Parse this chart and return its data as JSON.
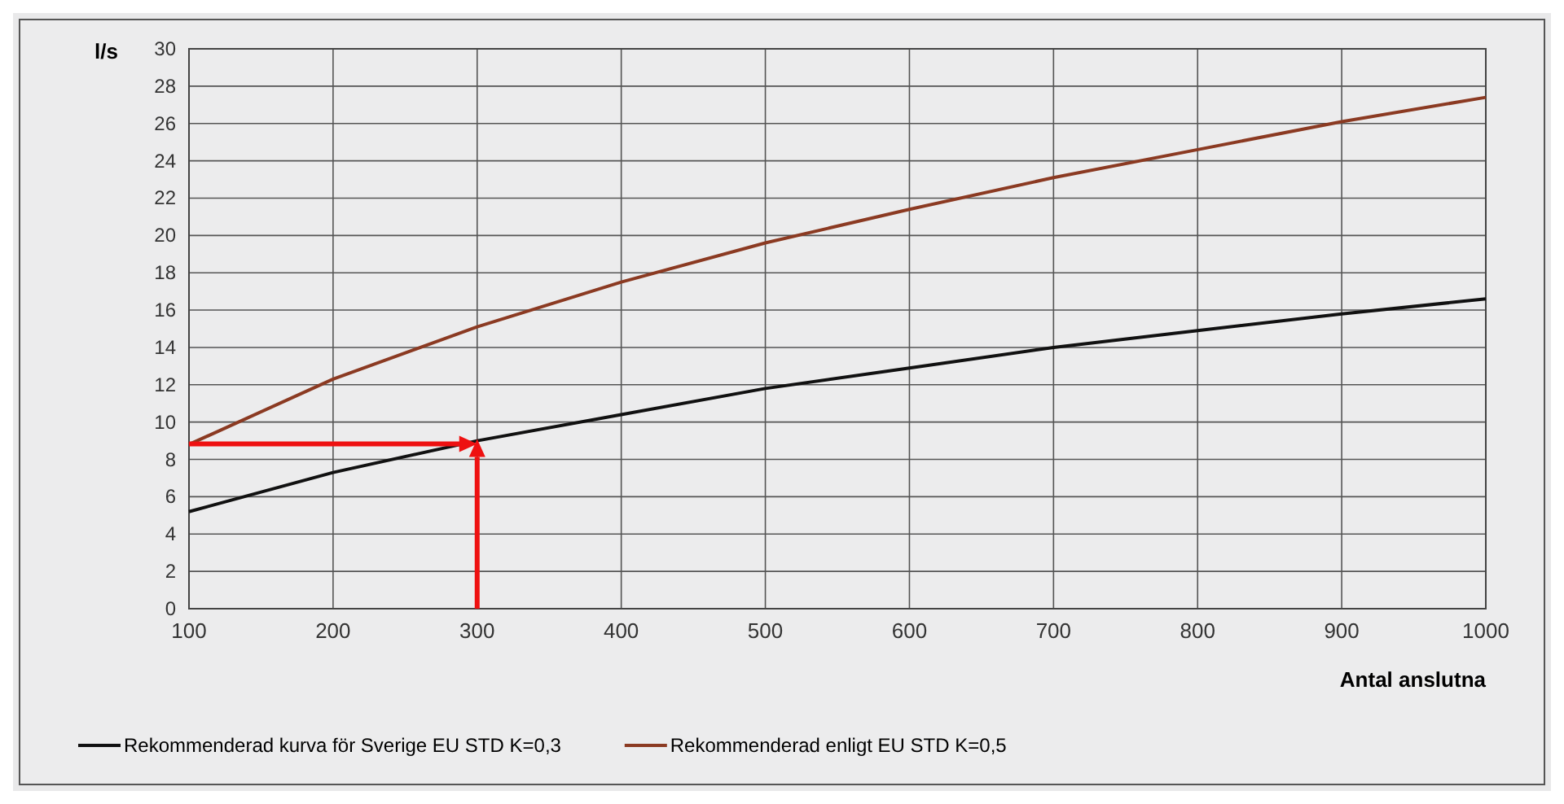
{
  "chart_data": {
    "type": "line",
    "xlabel": "Antal anslutna",
    "ylabel": "l/s",
    "x": [
      100,
      200,
      300,
      400,
      500,
      600,
      700,
      800,
      900,
      1000
    ],
    "series": [
      {
        "name": "Rekommenderad kurva för Sverige EU STD K=0,3",
        "color": "#111111",
        "values": [
          5.2,
          7.3,
          9.0,
          10.4,
          11.8,
          12.9,
          14.0,
          14.9,
          15.8,
          16.6
        ]
      },
      {
        "name": "Rekommenderad enligt EU STD K=0,5",
        "color": "#8b3a22",
        "values": [
          8.8,
          12.3,
          15.1,
          17.5,
          19.6,
          21.4,
          23.1,
          24.6,
          26.1,
          27.4
        ]
      }
    ],
    "xlim": [
      100,
      1000
    ],
    "xticks": [
      100,
      200,
      300,
      400,
      500,
      600,
      700,
      800,
      900,
      1000
    ],
    "ylim": [
      0,
      30
    ],
    "yticks": [
      0,
      2,
      4,
      6,
      8,
      10,
      12,
      14,
      16,
      18,
      20,
      22,
      24,
      26,
      28,
      30
    ],
    "grid": true,
    "legend": "bottom",
    "marker": "none",
    "line_style": "solid"
  }
}
